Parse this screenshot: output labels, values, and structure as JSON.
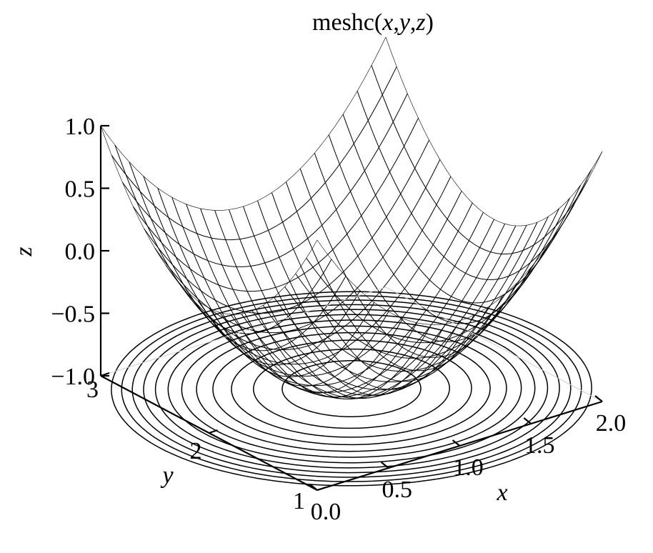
{
  "chart_data": {
    "type": "mesh-contour-3d",
    "title_parts": [
      "meshc(",
      "x",
      ",",
      "y",
      ",",
      "z",
      ")"
    ],
    "xlabel": "x",
    "ylabel": "y",
    "zlabel": "z",
    "x_ticks": [
      "0.0",
      "0.5",
      "1.0",
      "1.5",
      "2.0"
    ],
    "x_tick_values": [
      0,
      0.5,
      1,
      1.5,
      2
    ],
    "y_ticks": [
      "1",
      "2",
      "3"
    ],
    "y_tick_values": [
      1,
      2,
      3
    ],
    "z_ticks": [
      "1.0",
      "0.5",
      "0.0",
      "−0.5",
      "−1.0"
    ],
    "z_tick_values": [
      1,
      0.5,
      0,
      -0.5,
      -1
    ],
    "xlim": [
      0,
      2
    ],
    "ylim": [
      1,
      3
    ],
    "zlim": [
      -1,
      1
    ],
    "surface": "z = (x-1)^2 + (y-2)^2 - 1",
    "mesh_grid": 20,
    "contour_levels": [
      -0.85,
      -0.7,
      -0.55,
      -0.4,
      -0.25,
      -0.1,
      0.05,
      0.2,
      0.35,
      0.5,
      0.65,
      0.8
    ],
    "grid": false,
    "colors": {
      "line": "#000000",
      "background": "#ffffff"
    }
  }
}
